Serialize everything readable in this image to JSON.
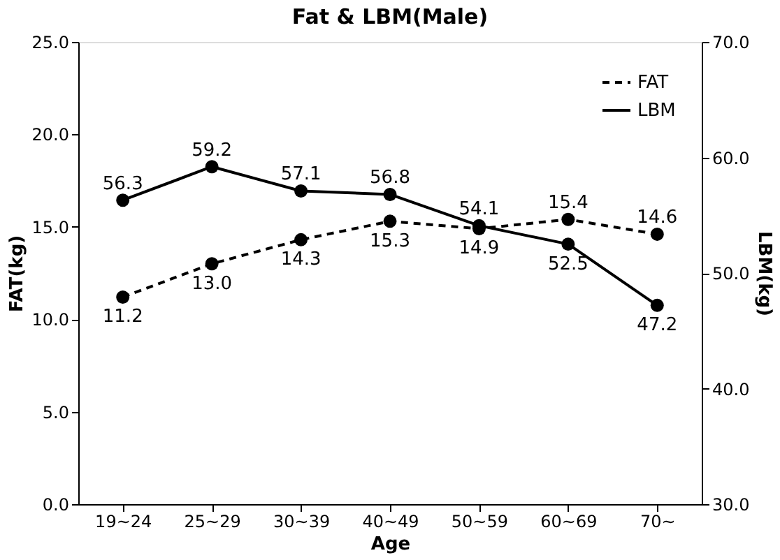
{
  "chart_data": {
    "type": "line",
    "title": "Fat & LBM(Male)",
    "xlabel": "Age",
    "ylabel": "FAT(kg)",
    "y2label": "LBM(kg)",
    "categories": [
      "19~24",
      "25~29",
      "30~39",
      "40~49",
      "50~59",
      "60~69",
      "70~"
    ],
    "series": [
      {
        "name": "FAT",
        "color": "#000000",
        "line_style": "dashed",
        "marker": "circle",
        "values": [
          11.2,
          13.0,
          14.3,
          15.3,
          14.9,
          15.4,
          14.6
        ],
        "value_labels": [
          "11.2",
          "13.0",
          "14.3",
          "15.3",
          "14.9",
          "15.4",
          "14.6"
        ]
      },
      {
        "name": "LBM",
        "color": "#000000",
        "line_style": "solid",
        "marker": "circle",
        "axis": "y2",
        "values": [
          56.3,
          59.2,
          57.1,
          56.8,
          54.1,
          52.5,
          47.2
        ],
        "value_labels": [
          "56.3",
          "59.2",
          "57.1",
          "56.8",
          "54.1",
          "52.5",
          "47.2"
        ]
      }
    ],
    "ylim": [
      0,
      25
    ],
    "yticks": [
      {
        "value": 0,
        "label": "0.0"
      },
      {
        "value": 5,
        "label": "5.0"
      },
      {
        "value": 10,
        "label": "10.0"
      },
      {
        "value": 15,
        "label": "15.0"
      },
      {
        "value": 20,
        "label": "20.0"
      },
      {
        "value": 25,
        "label": "25.0"
      }
    ],
    "y2lim": [
      30,
      70
    ],
    "y2ticks": [
      {
        "value": 30,
        "label": "30.0"
      },
      {
        "value": 40,
        "label": "40.0"
      },
      {
        "value": 50,
        "label": "50.0"
      },
      {
        "value": 60,
        "label": "60.0"
      },
      {
        "value": 70,
        "label": "70.0"
      }
    ],
    "legend": "top right",
    "grid": false
  }
}
